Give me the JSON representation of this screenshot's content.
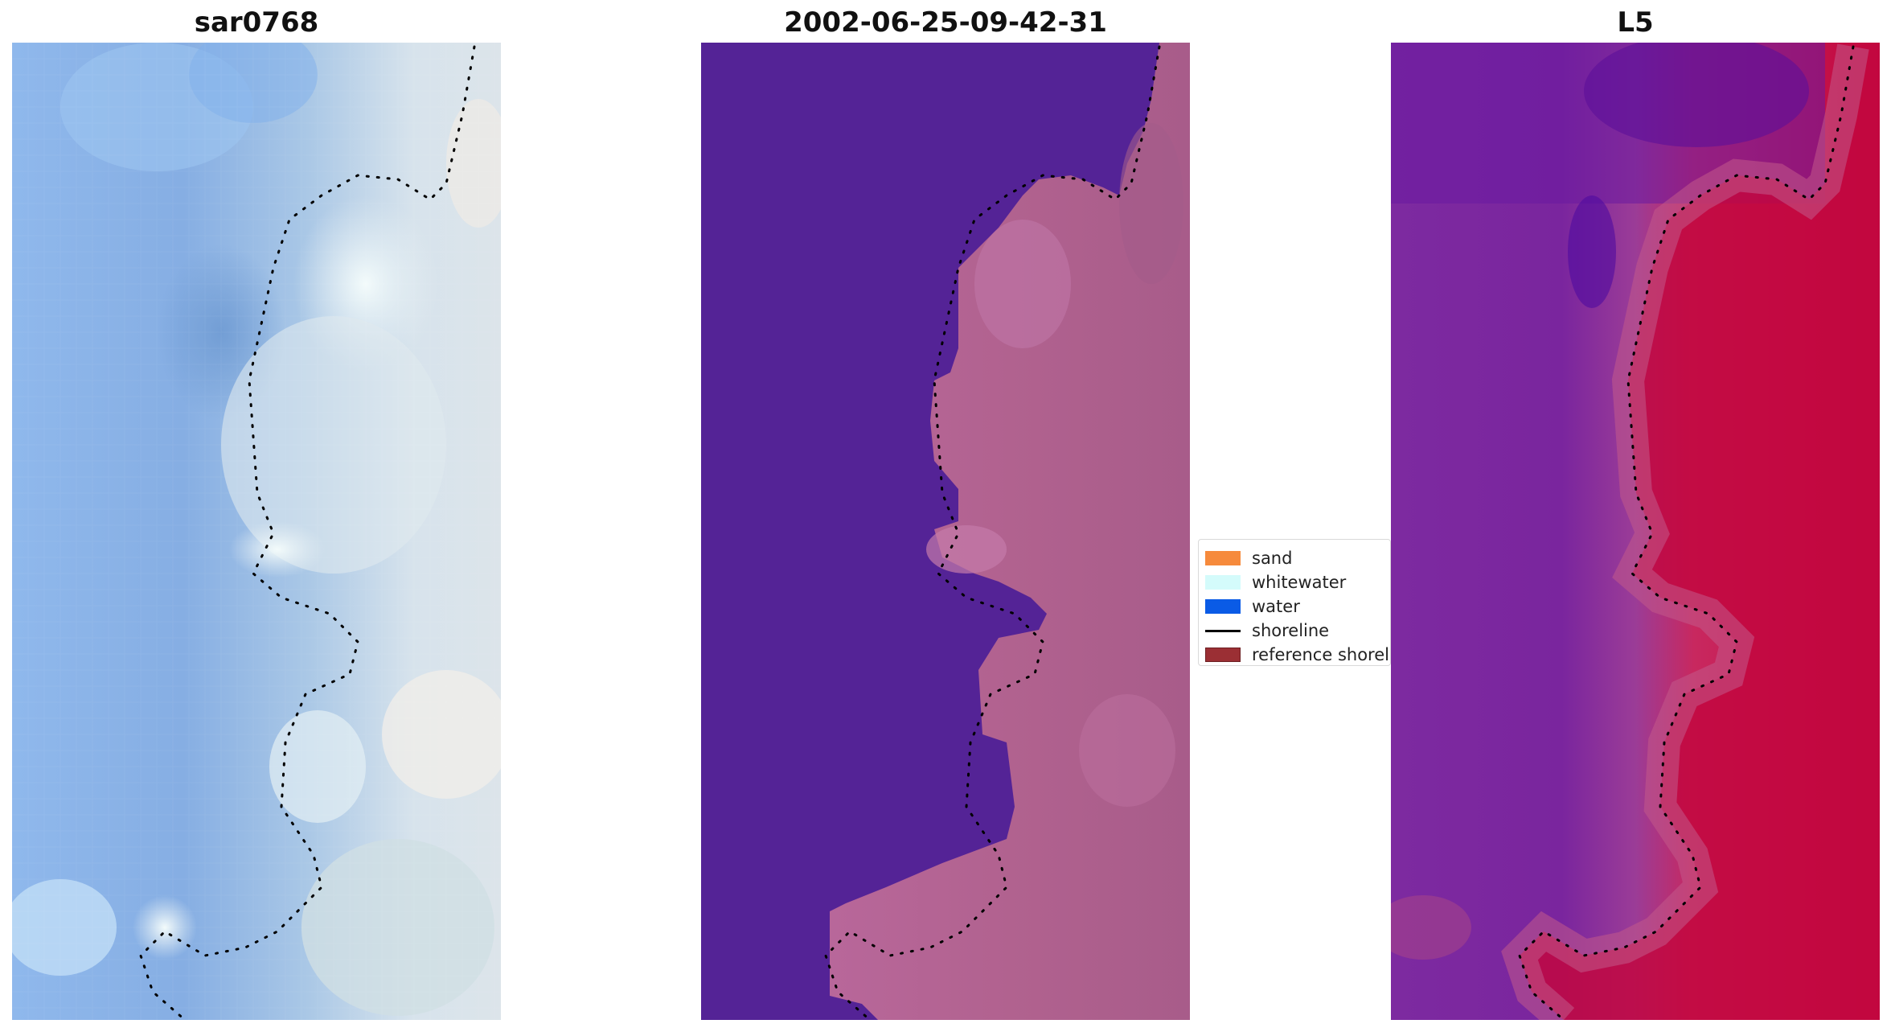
{
  "panels": [
    {
      "title": "sar0768"
    },
    {
      "title": "2002-06-25-09-42-31"
    },
    {
      "title": "L5"
    }
  ],
  "legend": {
    "items": [
      {
        "label": "sand",
        "color": "#f68a3c",
        "kind": "patch"
      },
      {
        "label": "whitewater",
        "color": "#d4fbfb",
        "kind": "patch"
      },
      {
        "label": "water",
        "color": "#0a5be6",
        "kind": "patch"
      },
      {
        "label": "shoreline",
        "color": "#000000",
        "kind": "line"
      },
      {
        "label": "reference shoreline",
        "color": "#9b2f34",
        "kind": "patch"
      }
    ]
  },
  "colors": {
    "rgb_water": "#8ab6ea",
    "rgb_land": "#dfe6ee",
    "class_water": "#542396",
    "class_land": "#b36496",
    "index_water": "#7a2aa0",
    "index_land": "#c4063d"
  }
}
